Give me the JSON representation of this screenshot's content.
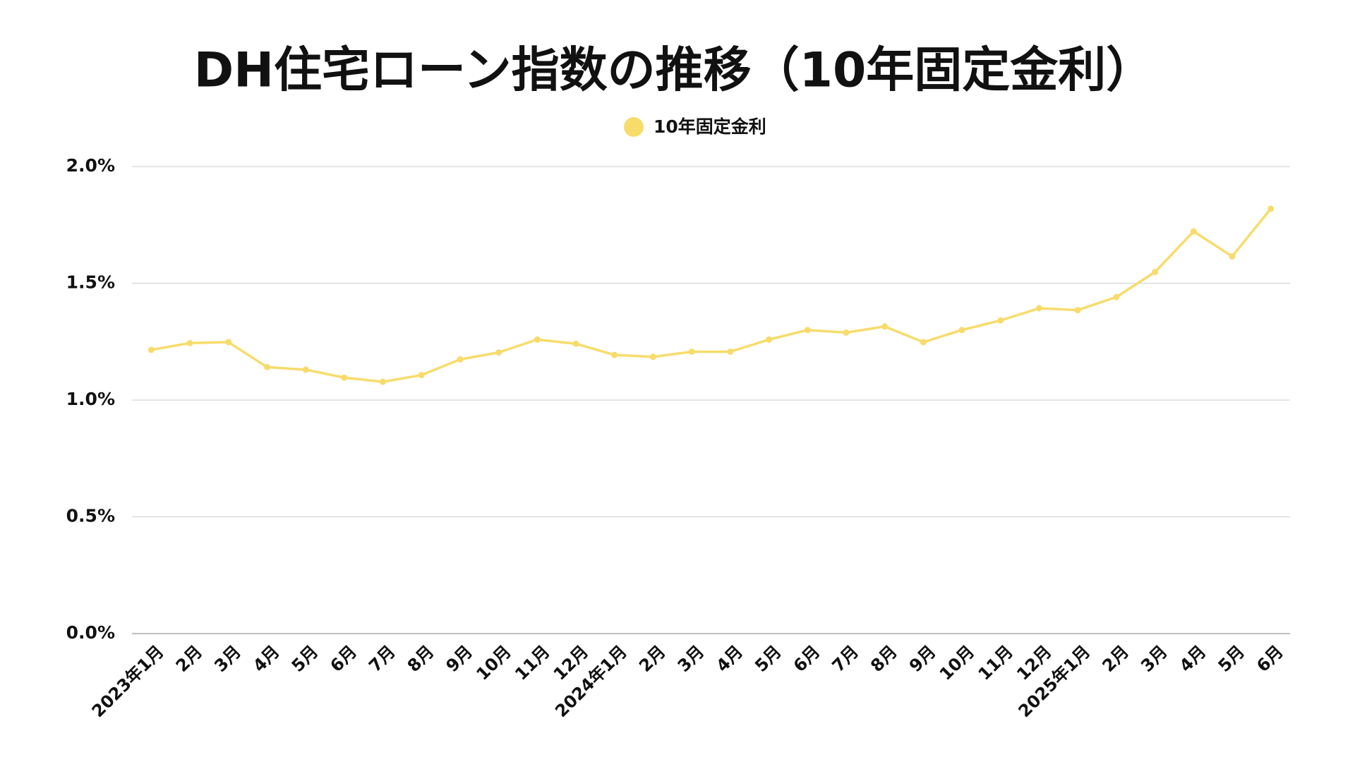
{
  "chart_data": {
    "type": "line",
    "title": "DH住宅ローン指数の推移（10年固定金利）",
    "categories": [
      "2023年1月",
      "2月",
      "3月",
      "4月",
      "5月",
      "6月",
      "7月",
      "8月",
      "9月",
      "10月",
      "11月",
      "12月",
      "2024年1月",
      "2月",
      "3月",
      "4月",
      "5月",
      "6月",
      "7月",
      "8月",
      "9月",
      "10月",
      "11月",
      "12月",
      "2025年1月",
      "2月",
      "3月",
      "4月",
      "5月",
      "6月"
    ],
    "series": [
      {
        "name": "10年固定金利",
        "color": "#f8dc6b",
        "values": [
          1.215,
          1.244,
          1.248,
          1.141,
          1.13,
          1.096,
          1.078,
          1.107,
          1.174,
          1.204,
          1.259,
          1.241,
          1.193,
          1.185,
          1.207,
          1.207,
          1.259,
          1.3,
          1.289,
          1.315,
          1.248,
          1.3,
          1.341,
          1.393,
          1.385,
          1.441,
          1.548,
          1.722,
          1.615,
          1.819
        ]
      }
    ],
    "ylim": [
      0,
      2
    ],
    "yticks": [
      {
        "value": 0,
        "label": "0.0%"
      },
      {
        "value": 0.5,
        "label": "0.5%"
      },
      {
        "value": 1,
        "label": "1.0%"
      },
      {
        "value": 1.5,
        "label": "1.5%"
      },
      {
        "value": 2,
        "label": "2.0%"
      }
    ],
    "grid": true,
    "legend": "top"
  }
}
